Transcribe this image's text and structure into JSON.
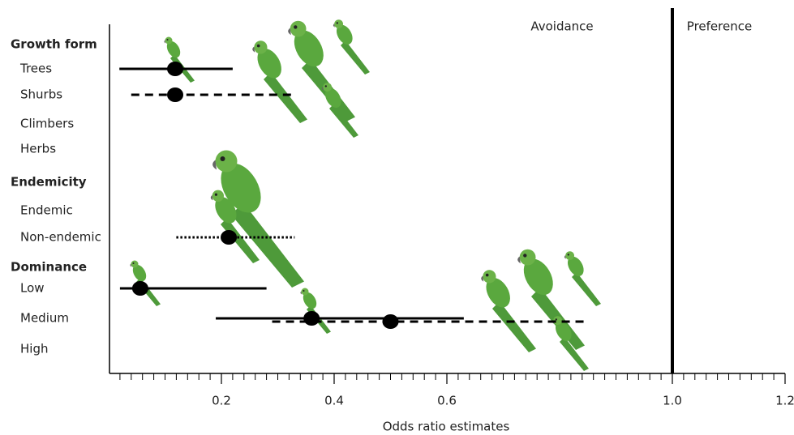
{
  "chart_data": {
    "type": "forest",
    "xlabel": "Odds ratio estimates",
    "xlim": [
      0,
      1.2
    ],
    "xticks": [
      0.2,
      0.4,
      0.6,
      {
        "value": 1,
        "label": "1.0"
      },
      1.2
    ],
    "xminor": [
      0.02,
      0.04,
      0.06,
      0.08,
      0.1,
      0.12,
      0.14,
      0.16,
      0.18,
      0.2,
      0.22,
      0.24,
      0.26,
      0.28,
      0.3,
      0.32,
      0.34,
      0.36,
      0.38,
      0.4,
      0.42,
      0.44,
      0.46,
      0.48,
      0.5,
      0.52,
      0.54,
      0.56,
      0.58,
      0.6,
      0.62,
      0.64,
      0.66,
      0.68,
      0.7,
      0.72,
      0.74,
      0.76,
      0.78,
      0.8,
      0.82,
      0.84,
      0.86,
      0.88,
      0.9,
      0.92,
      0.94,
      0.96,
      0.98,
      1,
      1.02,
      1.04,
      1.06,
      1.08,
      1.1,
      1.12,
      1.14,
      1.16,
      1.18,
      1.2
    ],
    "reference_x": 1,
    "annotations": [
      "Avoidance",
      "Preference"
    ],
    "groups": [
      {
        "name": "Growth form",
        "rows": [
          {
            "label": "Trees",
            "estimates": [
              {
                "value": 0.118,
                "ci": [
                  0.019,
                  0.22
                ],
                "style": "solid"
              }
            ]
          },
          {
            "label": "Shurbs",
            "estimates": [
              {
                "value": 0.118,
                "ci": [
                  0.04,
                  0.33
                ],
                "style": "dashed"
              }
            ]
          },
          {
            "label": "Climbers",
            "estimates": []
          },
          {
            "label": "Herbs",
            "estimates": []
          }
        ]
      },
      {
        "name": "Endemicity",
        "rows": [
          {
            "label": "Endemic",
            "estimates": []
          },
          {
            "label": "Non-endemic",
            "estimates": [
              {
                "value": 0.213,
                "ci": [
                  0.12,
                  0.33
                ],
                "style": "dotted"
              }
            ]
          }
        ]
      },
      {
        "name": "Dominance",
        "rows": [
          {
            "label": "Low",
            "estimates": [
              {
                "value": 0.056,
                "ci": [
                  0.02,
                  0.28
                ],
                "style": "solid"
              }
            ]
          },
          {
            "label": "Medium",
            "estimates": [
              {
                "value": 0.36,
                "ci": [
                  0.19,
                  0.63
                ],
                "style": "solid"
              },
              {
                "value": 0.5,
                "ci": [
                  0.29,
                  0.85
                ],
                "style": "dashed"
              }
            ]
          },
          {
            "label": "High",
            "estimates": []
          }
        ]
      }
    ]
  }
}
